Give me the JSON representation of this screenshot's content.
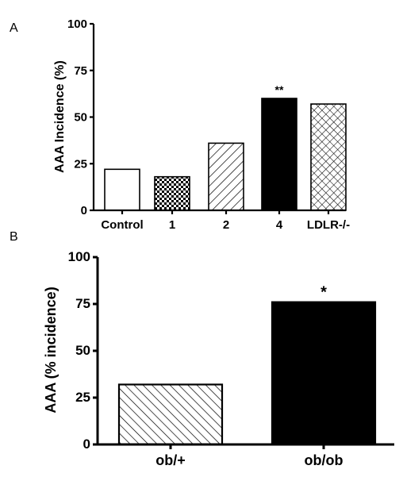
{
  "chart_data": [
    {
      "panel": "A",
      "type": "bar",
      "title": "",
      "xlabel": "",
      "ylabel": "AAA Incidence (%)",
      "ylim": [
        0,
        100
      ],
      "yticks": [
        0,
        25,
        50,
        75,
        100
      ],
      "categories": [
        "Control",
        "1",
        "2",
        "4",
        "LDLR-/-"
      ],
      "values": [
        22,
        18,
        36,
        60,
        57
      ],
      "fills": [
        "white",
        "checkerboard",
        "diagonal-hatch",
        "solid-black",
        "crosshatch"
      ],
      "annotations": [
        {
          "category": "4",
          "text": "**"
        }
      ],
      "grid": false
    },
    {
      "panel": "B",
      "type": "bar",
      "title": "",
      "xlabel": "",
      "ylabel": "AAA (% incidence)",
      "ylim": [
        0,
        100
      ],
      "yticks": [
        0,
        25,
        50,
        75,
        100
      ],
      "categories": [
        "ob/+",
        "ob/ob"
      ],
      "values": [
        32,
        76
      ],
      "fills": [
        "back-diagonal-hatch",
        "solid-black"
      ],
      "annotations": [
        {
          "category": "ob/ob",
          "text": "*"
        }
      ],
      "grid": false
    }
  ]
}
